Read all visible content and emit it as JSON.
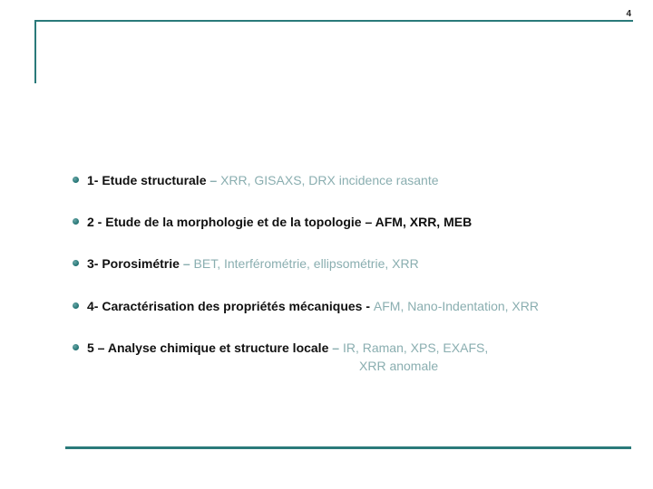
{
  "page_number": "4",
  "colors": {
    "accent": "#2a7a7a",
    "text": "#111111",
    "light_text": "#8aaeb0",
    "background": "#ffffff"
  },
  "items": [
    {
      "title": "1- Etude structurale",
      "dash": " – ",
      "rest": "XRR, GISAXS, DRX incidence rasante",
      "title_light": false,
      "rest_light": true,
      "dash_light": true
    },
    {
      "title": "2 - Etude de la morphologie et de la topologie",
      "dash": " – ",
      "rest": "AFM, XRR, MEB",
      "title_light": false,
      "rest_light": false,
      "dash_light": false
    },
    {
      "title": "3- Porosimétrie",
      "dash": " – ",
      "rest": "BET, Interférométrie, ellipsométrie, XRR",
      "title_light": false,
      "rest_light": true,
      "dash_light": true
    },
    {
      "title": "4- Caractérisation des propriétés mécaniques",
      "dash": " - ",
      "rest": "AFM, Nano-Indentation, XRR",
      "title_light": false,
      "rest_light": true,
      "dash_light": false
    },
    {
      "title": "5 – Analyse chimique et structure locale",
      "dash": " – ",
      "rest": "IR, Raman, XPS, EXAFS,",
      "rest2": "XRR anomale",
      "title_light": false,
      "rest_light": true,
      "dash_light": true
    }
  ]
}
